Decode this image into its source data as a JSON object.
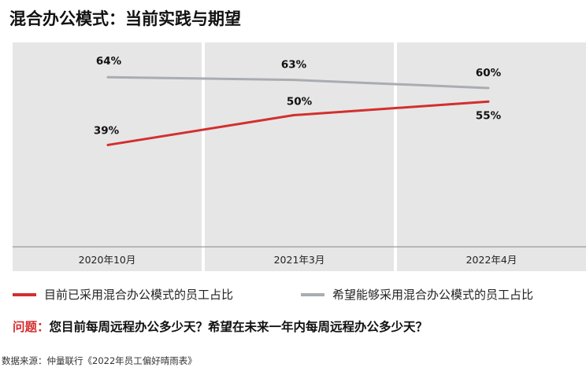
{
  "title": "混合办公模式：当前实践与期望",
  "chart_data": {
    "type": "line",
    "categories": [
      "2020年10月",
      "2021年3月",
      "2022年4月"
    ],
    "series": [
      {
        "name": "目前已采用混合办公模式的员工占比",
        "values": [
          39,
          50,
          55
        ],
        "labels": [
          "39%",
          "50%",
          "55%"
        ],
        "color": "#d32f2f"
      },
      {
        "name": "希望能够采用混合办公模式的员工占比",
        "values": [
          64,
          63,
          60
        ],
        "labels": [
          "64%",
          "63%",
          "60%"
        ],
        "color": "#a9acb1"
      }
    ],
    "ylim": [
      0,
      70
    ],
    "grid": false,
    "legend_position": "bottom",
    "panel_color": "#e6e6e6"
  },
  "legend": [
    {
      "label": "目前已采用混合办公模式的员工占比",
      "color": "#d32f2f"
    },
    {
      "label": "希望能够采用混合办公模式的员工占比",
      "color": "#a9acb1"
    }
  ],
  "question": {
    "prefix": "问题：",
    "text": "您目前每周远程办公多少天？希望在未来一年内每周远程办公多少天？"
  },
  "source": "数据来源：仲量联行《2022年员工偏好晴雨表》"
}
